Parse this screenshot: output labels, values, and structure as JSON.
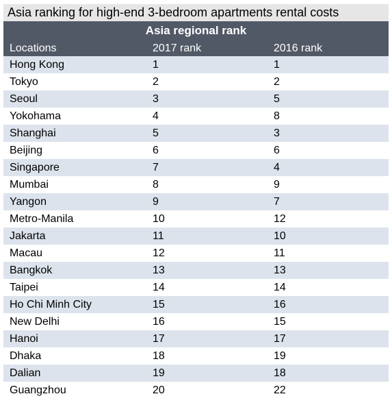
{
  "title": "Asia ranking for high-end 3-bedroom apartments rental costs",
  "header": {
    "group_label": "Asia regional rank",
    "columns": [
      "Locations",
      "2017 rank",
      "2016 rank"
    ]
  },
  "colors": {
    "title_band": "#e6e6e6",
    "header_band": "#525966",
    "stripe": "#dce3ec"
  },
  "chart_data": {
    "type": "table",
    "title": "Asia ranking for high-end 3-bedroom apartments rental costs",
    "column_group": "Asia regional rank",
    "columns": [
      "Locations",
      "2017 rank",
      "2016 rank"
    ],
    "rows": [
      [
        "Hong Kong",
        "1",
        "1"
      ],
      [
        "Tokyo",
        "2",
        "2"
      ],
      [
        "Seoul",
        "3",
        "5"
      ],
      [
        "Yokohama",
        "4",
        "8"
      ],
      [
        "Shanghai",
        "5",
        "3"
      ],
      [
        "Beijing",
        "6",
        "6"
      ],
      [
        "Singapore",
        "7",
        "4"
      ],
      [
        "Mumbai",
        "8",
        "9"
      ],
      [
        "Yangon",
        "9",
        "7"
      ],
      [
        "Metro-Manila",
        "10",
        "12"
      ],
      [
        "Jakarta",
        "11",
        "10"
      ],
      [
        "Macau",
        "12",
        "11"
      ],
      [
        "Bangkok",
        "13",
        "13"
      ],
      [
        "Taipei",
        "14",
        "14"
      ],
      [
        "Ho Chi Minh City",
        "15",
        "16"
      ],
      [
        "New Delhi",
        "16",
        "15"
      ],
      [
        "Hanoi",
        "17",
        "17"
      ],
      [
        "Dhaka",
        "18",
        "19"
      ],
      [
        "Dalian",
        "19",
        "18"
      ],
      [
        "Guangzhou",
        "20",
        "22"
      ]
    ]
  }
}
